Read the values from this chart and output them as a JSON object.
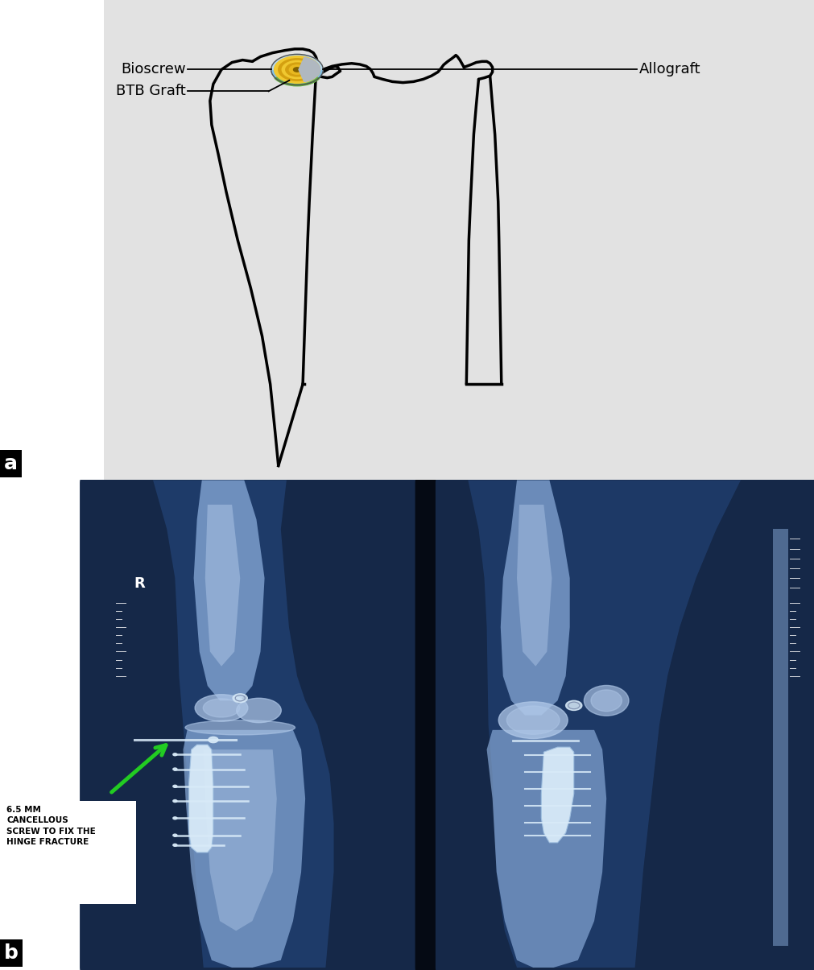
{
  "figure_width": 10.11,
  "figure_height": 12.05,
  "dpi": 100,
  "bg_color": "#ffffff",
  "panel_a_bg": "#e2e2e2",
  "panel_b_bg": "#0d1a35",
  "label_a_text": "a",
  "label_b_text": "b",
  "label_fontsize": 18,
  "bioscrew_label": "Bioscrew",
  "allograft_label": "Allograft",
  "btb_label": "BTB Graft",
  "annotation_text": "6.5 MM\nCANCELLOUS\nSCREW TO FIX THE\nHINGE FRACTURE",
  "annotation_fontsize": 7.5,
  "label_fontsize_diagram": 13,
  "xray_left_bg": "#1a3060",
  "xray_right_bg": "#1a3060",
  "bone_color_xray": "#7090c8",
  "metal_color": "#d8e8f8",
  "xray_dark": "#0a1828"
}
